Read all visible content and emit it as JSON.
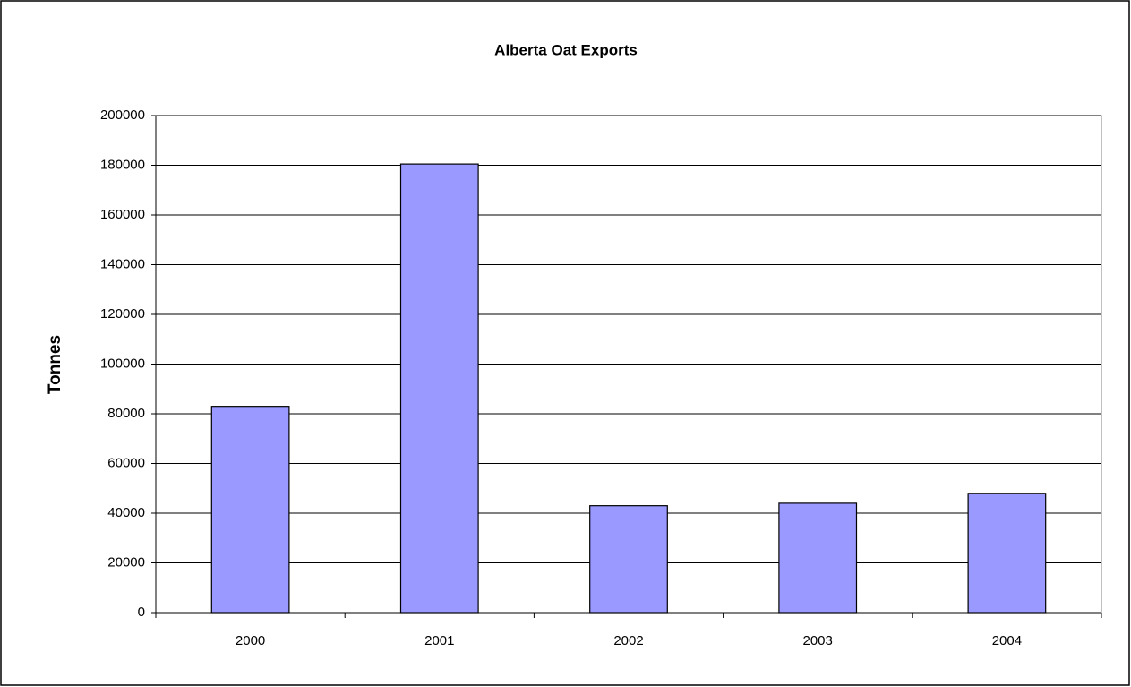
{
  "chart_data": {
    "type": "bar",
    "title": "Alberta Oat Exports",
    "ylabel": "Tonnes",
    "categories": [
      "2000",
      "2001",
      "2002",
      "2003",
      "2004"
    ],
    "values": [
      83000,
      180500,
      43000,
      44000,
      48000
    ],
    "color": "#9999ff",
    "ylim": [
      0,
      200000
    ],
    "yticks": [
      0,
      20000,
      40000,
      60000,
      80000,
      100000,
      120000,
      140000,
      160000,
      180000,
      200000
    ],
    "grid": true
  }
}
